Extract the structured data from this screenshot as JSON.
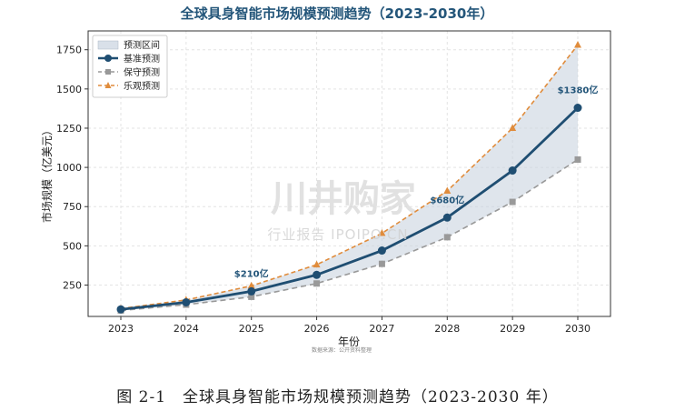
{
  "chart_data": {
    "type": "line",
    "title": "全球具身智能市场规模预测趋势（2023-2030年）",
    "xlabel": "年份",
    "ylabel": "市场规模（亿美元）",
    "x": [
      "2023",
      "2024",
      "2025",
      "2026",
      "2027",
      "2028",
      "2029",
      "2030"
    ],
    "yticks": [
      250,
      500,
      750,
      1000,
      1250,
      1500,
      1750
    ],
    "ylim": [
      50,
      1870
    ],
    "grid": true,
    "legend_position": "top-left",
    "band_label": "预测区间",
    "series": [
      {
        "name": "基准预测",
        "values": [
          95,
          140,
          210,
          315,
          470,
          680,
          980,
          1380
        ],
        "color": "#1f4e72"
      },
      {
        "name": "保守预测",
        "values": [
          88,
          125,
          175,
          260,
          385,
          555,
          780,
          1050
        ],
        "color": "#999999"
      },
      {
        "name": "乐观预测",
        "values": [
          100,
          155,
          245,
          380,
          580,
          850,
          1250,
          1780
        ],
        "color": "#e08c3c"
      }
    ],
    "annotations": [
      {
        "x": "2025",
        "y": 210,
        "text": "$210亿"
      },
      {
        "x": "2028",
        "y": 680,
        "text": "$680亿"
      },
      {
        "x": "2030",
        "y": 1380,
        "text": "$1380亿"
      }
    ],
    "source": "数据来源：公开资料整理"
  },
  "watermark": {
    "main": "川井购家",
    "sub": "行业报告 IPOIPO.CN"
  },
  "caption": "图 2-1　全球具身智能市场规模预测趋势（2023-2030 年）"
}
